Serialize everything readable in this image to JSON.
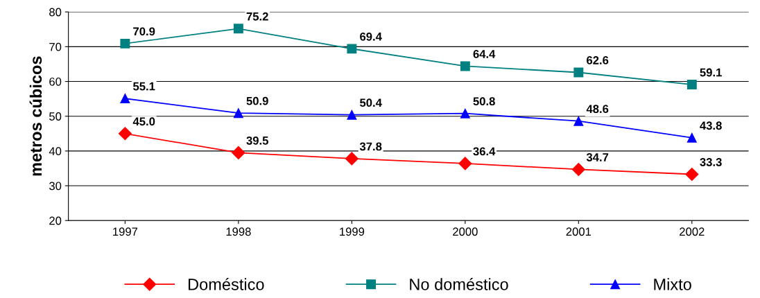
{
  "chart_data": {
    "type": "line",
    "ylabel": "metros cúbicos",
    "categories": [
      "1997",
      "1998",
      "1999",
      "2000",
      "2001",
      "2002"
    ],
    "series": [
      {
        "name": "Doméstico",
        "color": "#ff0000",
        "marker": "diamond",
        "values": [
          45.0,
          39.5,
          37.8,
          36.4,
          34.7,
          33.3
        ],
        "value_labels": [
          "45.0",
          "39.5",
          "37.8",
          "36.4",
          "34.7",
          "33.3"
        ]
      },
      {
        "name": "No doméstico",
        "color": "#008080",
        "marker": "square",
        "values": [
          70.9,
          75.2,
          69.4,
          64.4,
          62.6,
          59.1
        ],
        "value_labels": [
          "70.9",
          "75.2",
          "69.4",
          "64.4",
          "62.6",
          "59.1"
        ]
      },
      {
        "name": "Mixto",
        "color": "#0000ff",
        "marker": "triangle",
        "values": [
          55.1,
          50.9,
          50.4,
          50.8,
          48.6,
          43.8
        ],
        "value_labels": [
          "55.1",
          "50.9",
          "50.4",
          "50.8",
          "48.6",
          "43.8"
        ]
      }
    ],
    "ylim": [
      20,
      80
    ],
    "yticks": [
      20,
      30,
      40,
      50,
      60,
      70,
      80
    ],
    "grid": "y",
    "legend": "bottom",
    "line_style": "solid"
  }
}
